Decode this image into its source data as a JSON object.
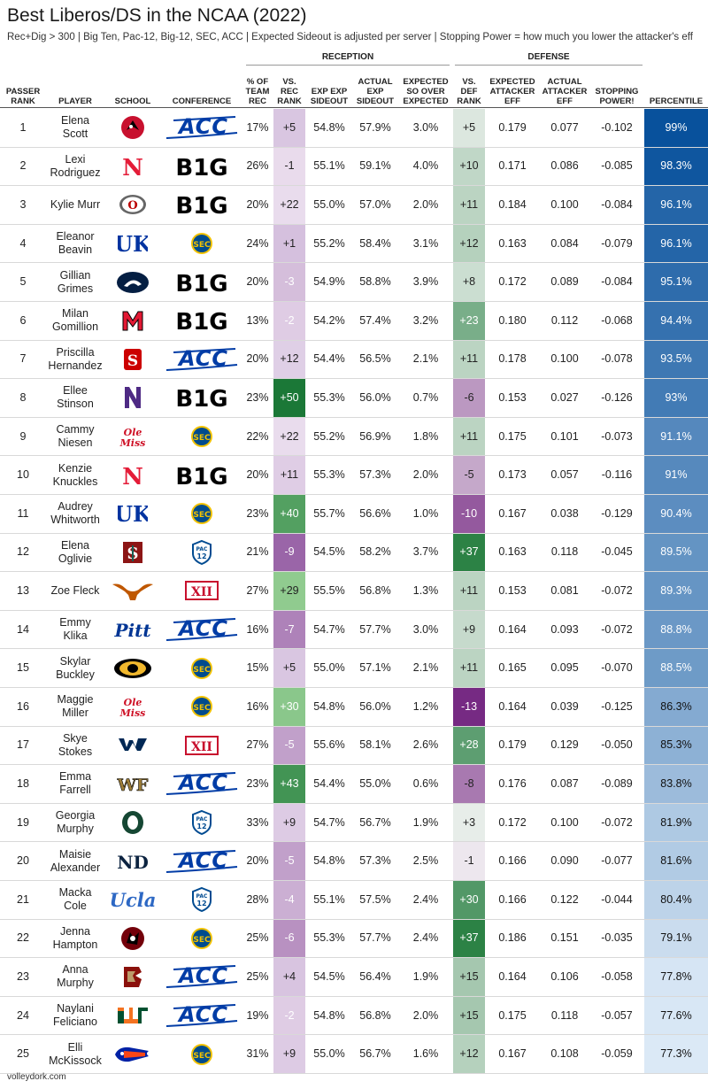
{
  "title": "Best Liberos/DS in the NCAA (2022)",
  "subtitle": "Rec+Dig > 300 | Big Ten, Pac-12, Big-12, SEC, ACC | Expected Sideout is adjusted per server | Stopping Power = how much you lower the attacker's eff",
  "groups": {
    "reception": "RECEPTION",
    "defense": "DEFENSE"
  },
  "headers": {
    "passer_rank": "PASSER\nRANK",
    "player": "PLAYER",
    "school": "SCHOOL",
    "conference": "CONFERENCE",
    "pct_team_rec": "% OF\nTEAM\nREC",
    "vs_rec_rank": "VS.\nREC\nRANK",
    "exp_exp_sideout": "EXP EXP\nSIDEOUT",
    "actual_exp_sideout": "ACTUAL\nEXP\nSIDEOUT",
    "expected_so_over": "EXPECTED\nSO OVER\nEXPECTED",
    "vs_def_rank": "VS.\nDEF\nRANK",
    "expected_attacker_eff": "EXPECTED\nATTACKER\nEFF",
    "actual_attacker_eff": "ACTUAL\nATTACKER\nEFF",
    "stopping_power": "STOPPING\nPOWER!",
    "percentile": "PERCENTILE"
  },
  "footer": "volleydork.com",
  "colors": {
    "purple_dark": "#762a83",
    "green_dark": "#1b7837",
    "blue_dark": "#08519c",
    "blue_light": "#deebf7"
  },
  "chart_data": {
    "type": "table",
    "columns": [
      "PASSER RANK",
      "PLAYER",
      "SCHOOL",
      "CONFERENCE",
      "% OF TEAM REC",
      "VS. REC RANK",
      "EXP EXP SIDEOUT",
      "ACTUAL EXP SIDEOUT",
      "EXPECTED SO OVER EXPECTED",
      "VS. DEF RANK",
      "EXPECTED ATTACKER EFF",
      "ACTUAL ATTACKER EFF",
      "STOPPING POWER!",
      "PERCENTILE"
    ],
    "rows": [
      {
        "rank": "1",
        "player": "Elena\nScott",
        "school": "louisville",
        "conference": "ACC",
        "pct": "17%",
        "vs_rec": "+5",
        "exp_exp": "54.8%",
        "act_exp": "57.9%",
        "so_over": "3.0%",
        "vs_def": "+5",
        "exp_att": "0.179",
        "act_att": "0.077",
        "stop": "-0.102",
        "pctile": "99%",
        "pctile_val": 99
      },
      {
        "rank": "2",
        "player": "Lexi\nRodriguez",
        "school": "nebraska",
        "conference": "B1G",
        "pct": "26%",
        "vs_rec": "-1",
        "exp_exp": "55.1%",
        "act_exp": "59.1%",
        "so_over": "4.0%",
        "vs_def": "+10",
        "exp_att": "0.171",
        "act_att": "0.086",
        "stop": "-0.085",
        "pctile": "98.3%",
        "pctile_val": 98.3
      },
      {
        "rank": "3",
        "player": "Kylie Murr",
        "school": "ohio-state",
        "conference": "B1G",
        "pct": "20%",
        "vs_rec": "+22",
        "exp_exp": "55.0%",
        "act_exp": "57.0%",
        "so_over": "2.0%",
        "vs_def": "+11",
        "exp_att": "0.184",
        "act_att": "0.100",
        "stop": "-0.084",
        "pctile": "96.1%",
        "pctile_val": 96.1
      },
      {
        "rank": "4",
        "player": "Eleanor\nBeavin",
        "school": "kentucky",
        "conference": "SEC",
        "pct": "24%",
        "vs_rec": "+1",
        "exp_exp": "55.2%",
        "act_exp": "58.4%",
        "so_over": "3.1%",
        "vs_def": "+12",
        "exp_att": "0.163",
        "act_att": "0.084",
        "stop": "-0.079",
        "pctile": "96.1%",
        "pctile_val": 96.1
      },
      {
        "rank": "5",
        "player": "Gillian\nGrimes",
        "school": "penn-state",
        "conference": "B1G",
        "pct": "20%",
        "vs_rec": "-3",
        "exp_exp": "54.9%",
        "act_exp": "58.8%",
        "so_over": "3.9%",
        "vs_def": "+8",
        "exp_att": "0.172",
        "act_att": "0.089",
        "stop": "-0.084",
        "pctile": "95.1%",
        "pctile_val": 95.1
      },
      {
        "rank": "6",
        "player": "Milan\nGomillion",
        "school": "maryland",
        "conference": "B1G",
        "pct": "13%",
        "vs_rec": "-2",
        "exp_exp": "54.2%",
        "act_exp": "57.4%",
        "so_over": "3.2%",
        "vs_def": "+23",
        "exp_att": "0.180",
        "act_att": "0.112",
        "stop": "-0.068",
        "pctile": "94.4%",
        "pctile_val": 94.4
      },
      {
        "rank": "7",
        "player": "Priscilla\nHernandez",
        "school": "nc-state",
        "conference": "ACC",
        "pct": "20%",
        "vs_rec": "+12",
        "exp_exp": "54.4%",
        "act_exp": "56.5%",
        "so_over": "2.1%",
        "vs_def": "+11",
        "exp_att": "0.178",
        "act_att": "0.100",
        "stop": "-0.078",
        "pctile": "93.5%",
        "pctile_val": 93.5
      },
      {
        "rank": "8",
        "player": "Ellee\nStinson",
        "school": "northwestern",
        "conference": "B1G",
        "pct": "23%",
        "vs_rec": "+50",
        "exp_exp": "55.3%",
        "act_exp": "56.0%",
        "so_over": "0.7%",
        "vs_def": "-6",
        "exp_att": "0.153",
        "act_att": "0.027",
        "stop": "-0.126",
        "pctile": "93%",
        "pctile_val": 93
      },
      {
        "rank": "9",
        "player": "Cammy\nNiesen",
        "school": "ole-miss",
        "conference": "SEC",
        "pct": "22%",
        "vs_rec": "+22",
        "exp_exp": "55.2%",
        "act_exp": "56.9%",
        "so_over": "1.8%",
        "vs_def": "+11",
        "exp_att": "0.175",
        "act_att": "0.101",
        "stop": "-0.073",
        "pctile": "91.1%",
        "pctile_val": 91.1
      },
      {
        "rank": "10",
        "player": "Kenzie\nKnuckles",
        "school": "nebraska",
        "conference": "B1G",
        "pct": "20%",
        "vs_rec": "+11",
        "exp_exp": "55.3%",
        "act_exp": "57.3%",
        "so_over": "2.0%",
        "vs_def": "-5",
        "exp_att": "0.173",
        "act_att": "0.057",
        "stop": "-0.116",
        "pctile": "91%",
        "pctile_val": 91
      },
      {
        "rank": "11",
        "player": "Audrey\nWhitworth",
        "school": "kentucky",
        "conference": "SEC",
        "pct": "23%",
        "vs_rec": "+40",
        "exp_exp": "55.7%",
        "act_exp": "56.6%",
        "so_over": "1.0%",
        "vs_def": "-10",
        "exp_att": "0.167",
        "act_att": "0.038",
        "stop": "-0.129",
        "pctile": "90.4%",
        "pctile_val": 90.4
      },
      {
        "rank": "12",
        "player": "Elena\nOglivie",
        "school": "stanford",
        "conference": "PAC12",
        "pct": "21%",
        "vs_rec": "-9",
        "exp_exp": "54.5%",
        "act_exp": "58.2%",
        "so_over": "3.7%",
        "vs_def": "+37",
        "exp_att": "0.163",
        "act_att": "0.118",
        "stop": "-0.045",
        "pctile": "89.5%",
        "pctile_val": 89.5
      },
      {
        "rank": "13",
        "player": "Zoe Fleck",
        "school": "texas",
        "conference": "BIG12",
        "pct": "27%",
        "vs_rec": "+29",
        "exp_exp": "55.5%",
        "act_exp": "56.8%",
        "so_over": "1.3%",
        "vs_def": "+11",
        "exp_att": "0.153",
        "act_att": "0.081",
        "stop": "-0.072",
        "pctile": "89.3%",
        "pctile_val": 89.3
      },
      {
        "rank": "14",
        "player": "Emmy\nKlika",
        "school": "pitt",
        "conference": "ACC",
        "pct": "16%",
        "vs_rec": "-7",
        "exp_exp": "54.7%",
        "act_exp": "57.7%",
        "so_over": "3.0%",
        "vs_def": "+9",
        "exp_att": "0.164",
        "act_att": "0.093",
        "stop": "-0.072",
        "pctile": "88.8%",
        "pctile_val": 88.8
      },
      {
        "rank": "15",
        "player": "Skylar\nBuckley",
        "school": "missouri",
        "conference": "SEC",
        "pct": "15%",
        "vs_rec": "+5",
        "exp_exp": "55.0%",
        "act_exp": "57.1%",
        "so_over": "2.1%",
        "vs_def": "+11",
        "exp_att": "0.165",
        "act_att": "0.095",
        "stop": "-0.070",
        "pctile": "88.5%",
        "pctile_val": 88.5
      },
      {
        "rank": "16",
        "player": "Maggie\nMiller",
        "school": "ole-miss",
        "conference": "SEC",
        "pct": "16%",
        "vs_rec": "+30",
        "exp_exp": "54.8%",
        "act_exp": "56.0%",
        "so_over": "1.2%",
        "vs_def": "-13",
        "exp_att": "0.164",
        "act_att": "0.039",
        "stop": "-0.125",
        "pctile": "86.3%",
        "pctile_val": 86.3
      },
      {
        "rank": "17",
        "player": "Skye\nStokes",
        "school": "west-virginia",
        "conference": "BIG12",
        "pct": "27%",
        "vs_rec": "-5",
        "exp_exp": "55.6%",
        "act_exp": "58.1%",
        "so_over": "2.6%",
        "vs_def": "+28",
        "exp_att": "0.179",
        "act_att": "0.129",
        "stop": "-0.050",
        "pctile": "85.3%",
        "pctile_val": 85.3
      },
      {
        "rank": "18",
        "player": "Emma\nFarrell",
        "school": "wake-forest",
        "conference": "ACC",
        "pct": "23%",
        "vs_rec": "+43",
        "exp_exp": "54.4%",
        "act_exp": "55.0%",
        "so_over": "0.6%",
        "vs_def": "-8",
        "exp_att": "0.176",
        "act_att": "0.087",
        "stop": "-0.089",
        "pctile": "83.8%",
        "pctile_val": 83.8
      },
      {
        "rank": "19",
        "player": "Georgia\nMurphy",
        "school": "oregon",
        "conference": "PAC12",
        "pct": "33%",
        "vs_rec": "+9",
        "exp_exp": "54.7%",
        "act_exp": "56.7%",
        "so_over": "1.9%",
        "vs_def": "+3",
        "exp_att": "0.172",
        "act_att": "0.100",
        "stop": "-0.072",
        "pctile": "81.9%",
        "pctile_val": 81.9
      },
      {
        "rank": "20",
        "player": "Maisie\nAlexander",
        "school": "notre-dame",
        "conference": "ACC",
        "pct": "20%",
        "vs_rec": "-5",
        "exp_exp": "54.8%",
        "act_exp": "57.3%",
        "so_over": "2.5%",
        "vs_def": "-1",
        "exp_att": "0.166",
        "act_att": "0.090",
        "stop": "-0.077",
        "pctile": "81.6%",
        "pctile_val": 81.6
      },
      {
        "rank": "21",
        "player": "Macka\nCole",
        "school": "ucla",
        "conference": "PAC12",
        "pct": "28%",
        "vs_rec": "-4",
        "exp_exp": "55.1%",
        "act_exp": "57.5%",
        "so_over": "2.4%",
        "vs_def": "+30",
        "exp_att": "0.166",
        "act_att": "0.122",
        "stop": "-0.044",
        "pctile": "80.4%",
        "pctile_val": 80.4
      },
      {
        "rank": "22",
        "player": "Jenna\nHampton",
        "school": "south-carolina",
        "conference": "SEC",
        "pct": "25%",
        "vs_rec": "-6",
        "exp_exp": "55.3%",
        "act_exp": "57.7%",
        "so_over": "2.4%",
        "vs_def": "+37",
        "exp_att": "0.186",
        "act_att": "0.151",
        "stop": "-0.035",
        "pctile": "79.1%",
        "pctile_val": 79.1
      },
      {
        "rank": "23",
        "player": "Anna\nMurphy",
        "school": "boston-college",
        "conference": "ACC",
        "pct": "25%",
        "vs_rec": "+4",
        "exp_exp": "54.5%",
        "act_exp": "56.4%",
        "so_over": "1.9%",
        "vs_def": "+15",
        "exp_att": "0.164",
        "act_att": "0.106",
        "stop": "-0.058",
        "pctile": "77.8%",
        "pctile_val": 77.8
      },
      {
        "rank": "24",
        "player": "Naylani\nFeliciano",
        "school": "miami",
        "conference": "ACC",
        "pct": "19%",
        "vs_rec": "-2",
        "exp_exp": "54.8%",
        "act_exp": "56.8%",
        "so_over": "2.0%",
        "vs_def": "+15",
        "exp_att": "0.175",
        "act_att": "0.118",
        "stop": "-0.057",
        "pctile": "77.6%",
        "pctile_val": 77.6
      },
      {
        "rank": "25",
        "player": "Elli\nMcKissock",
        "school": "florida",
        "conference": "SEC",
        "pct": "31%",
        "vs_rec": "+9",
        "exp_exp": "55.0%",
        "act_exp": "56.7%",
        "so_over": "1.6%",
        "vs_def": "+12",
        "exp_att": "0.167",
        "act_att": "0.108",
        "stop": "-0.059",
        "pctile": "77.3%",
        "pctile_val": 77.3
      }
    ]
  }
}
